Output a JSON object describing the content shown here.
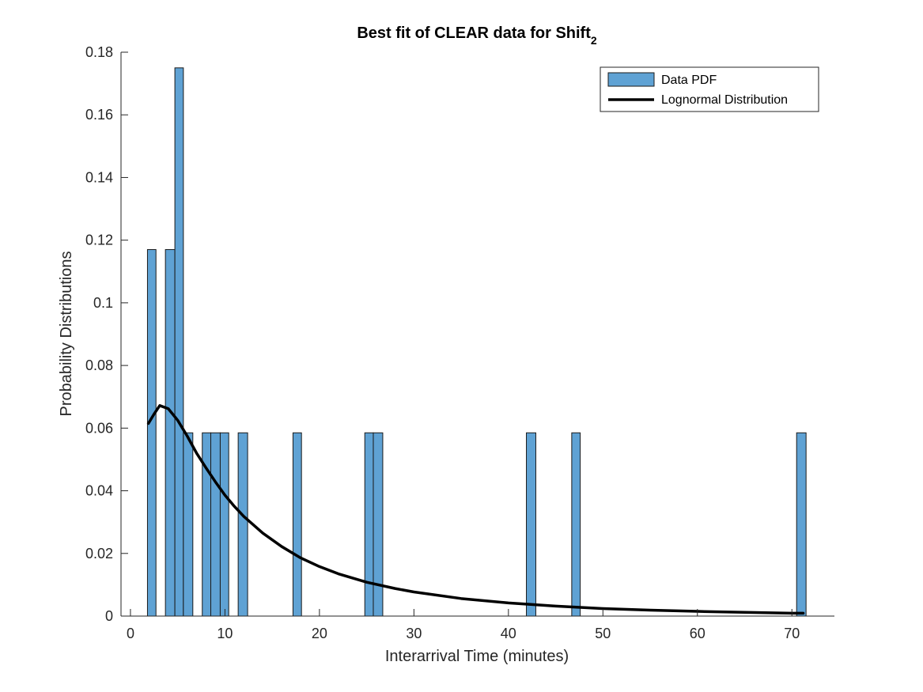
{
  "chart_data": {
    "type": "bar",
    "title": "Best fit of CLEAR data for Shift",
    "title_subscript": "2",
    "xlabel": "Interarrival Time (minutes)",
    "ylabel": "Probability Distributions",
    "xlim": [
      -1,
      74.5
    ],
    "ylim": [
      0,
      0.18
    ],
    "xticks": [
      0,
      10,
      20,
      30,
      40,
      50,
      60,
      70
    ],
    "yticks": [
      0,
      0.02,
      0.04,
      0.06,
      0.08,
      0.1,
      0.12,
      0.14,
      0.16,
      0.18
    ],
    "ytick_labels": [
      "0",
      "0.02",
      "0.04",
      "0.06",
      "0.08",
      "0.1",
      "0.12",
      "0.14",
      "0.16",
      "0.18"
    ],
    "legend_position": "top-right",
    "bar_color": "#5fa2d4",
    "bar_edge_color": "#1a1a1a",
    "curve_color": "#000000",
    "series": [
      {
        "name": "Data PDF",
        "kind": "histogram",
        "bins": [
          {
            "x0": 1.8,
            "x1": 2.7,
            "value": 0.117
          },
          {
            "x0": 3.7,
            "x1": 4.7,
            "value": 0.117
          },
          {
            "x0": 4.7,
            "x1": 5.6,
            "value": 0.175
          },
          {
            "x0": 5.6,
            "x1": 6.6,
            "value": 0.0585
          },
          {
            "x0": 7.6,
            "x1": 8.5,
            "value": 0.0585
          },
          {
            "x0": 8.5,
            "x1": 9.5,
            "value": 0.0585
          },
          {
            "x0": 9.5,
            "x1": 10.4,
            "value": 0.0585
          },
          {
            "x0": 11.4,
            "x1": 12.4,
            "value": 0.0585
          },
          {
            "x0": 17.2,
            "x1": 18.1,
            "value": 0.0585
          },
          {
            "x0": 24.8,
            "x1": 25.7,
            "value": 0.0585
          },
          {
            "x0": 25.7,
            "x1": 26.7,
            "value": 0.0585
          },
          {
            "x0": 41.9,
            "x1": 42.9,
            "value": 0.0585
          },
          {
            "x0": 46.7,
            "x1": 47.6,
            "value": 0.0585
          },
          {
            "x0": 70.5,
            "x1": 71.5,
            "value": 0.0585
          }
        ]
      },
      {
        "name": "Lognormal Distribution",
        "kind": "line",
        "points": [
          [
            1.9,
            0.0615
          ],
          [
            2.5,
            0.0645
          ],
          [
            3.1,
            0.0672
          ],
          [
            4.0,
            0.0662
          ],
          [
            5.0,
            0.0625
          ],
          [
            6.0,
            0.0575
          ],
          [
            7.0,
            0.052
          ],
          [
            8.0,
            0.0473
          ],
          [
            9.0,
            0.0428
          ],
          [
            10.0,
            0.0386
          ],
          [
            11.0,
            0.035
          ],
          [
            12.0,
            0.0318
          ],
          [
            14.0,
            0.0265
          ],
          [
            16.0,
            0.0222
          ],
          [
            18.0,
            0.0186
          ],
          [
            20.0,
            0.0158
          ],
          [
            22.0,
            0.0135
          ],
          [
            25.0,
            0.0108
          ],
          [
            28.0,
            0.0088
          ],
          [
            30.0,
            0.0077
          ],
          [
            35.0,
            0.0056
          ],
          [
            40.0,
            0.0042
          ],
          [
            45.0,
            0.0032
          ],
          [
            50.0,
            0.0024
          ],
          [
            55.0,
            0.0019
          ],
          [
            60.0,
            0.0015
          ],
          [
            65.0,
            0.0012
          ],
          [
            70.0,
            0.0009
          ],
          [
            71.2,
            0.0009
          ]
        ]
      }
    ]
  }
}
